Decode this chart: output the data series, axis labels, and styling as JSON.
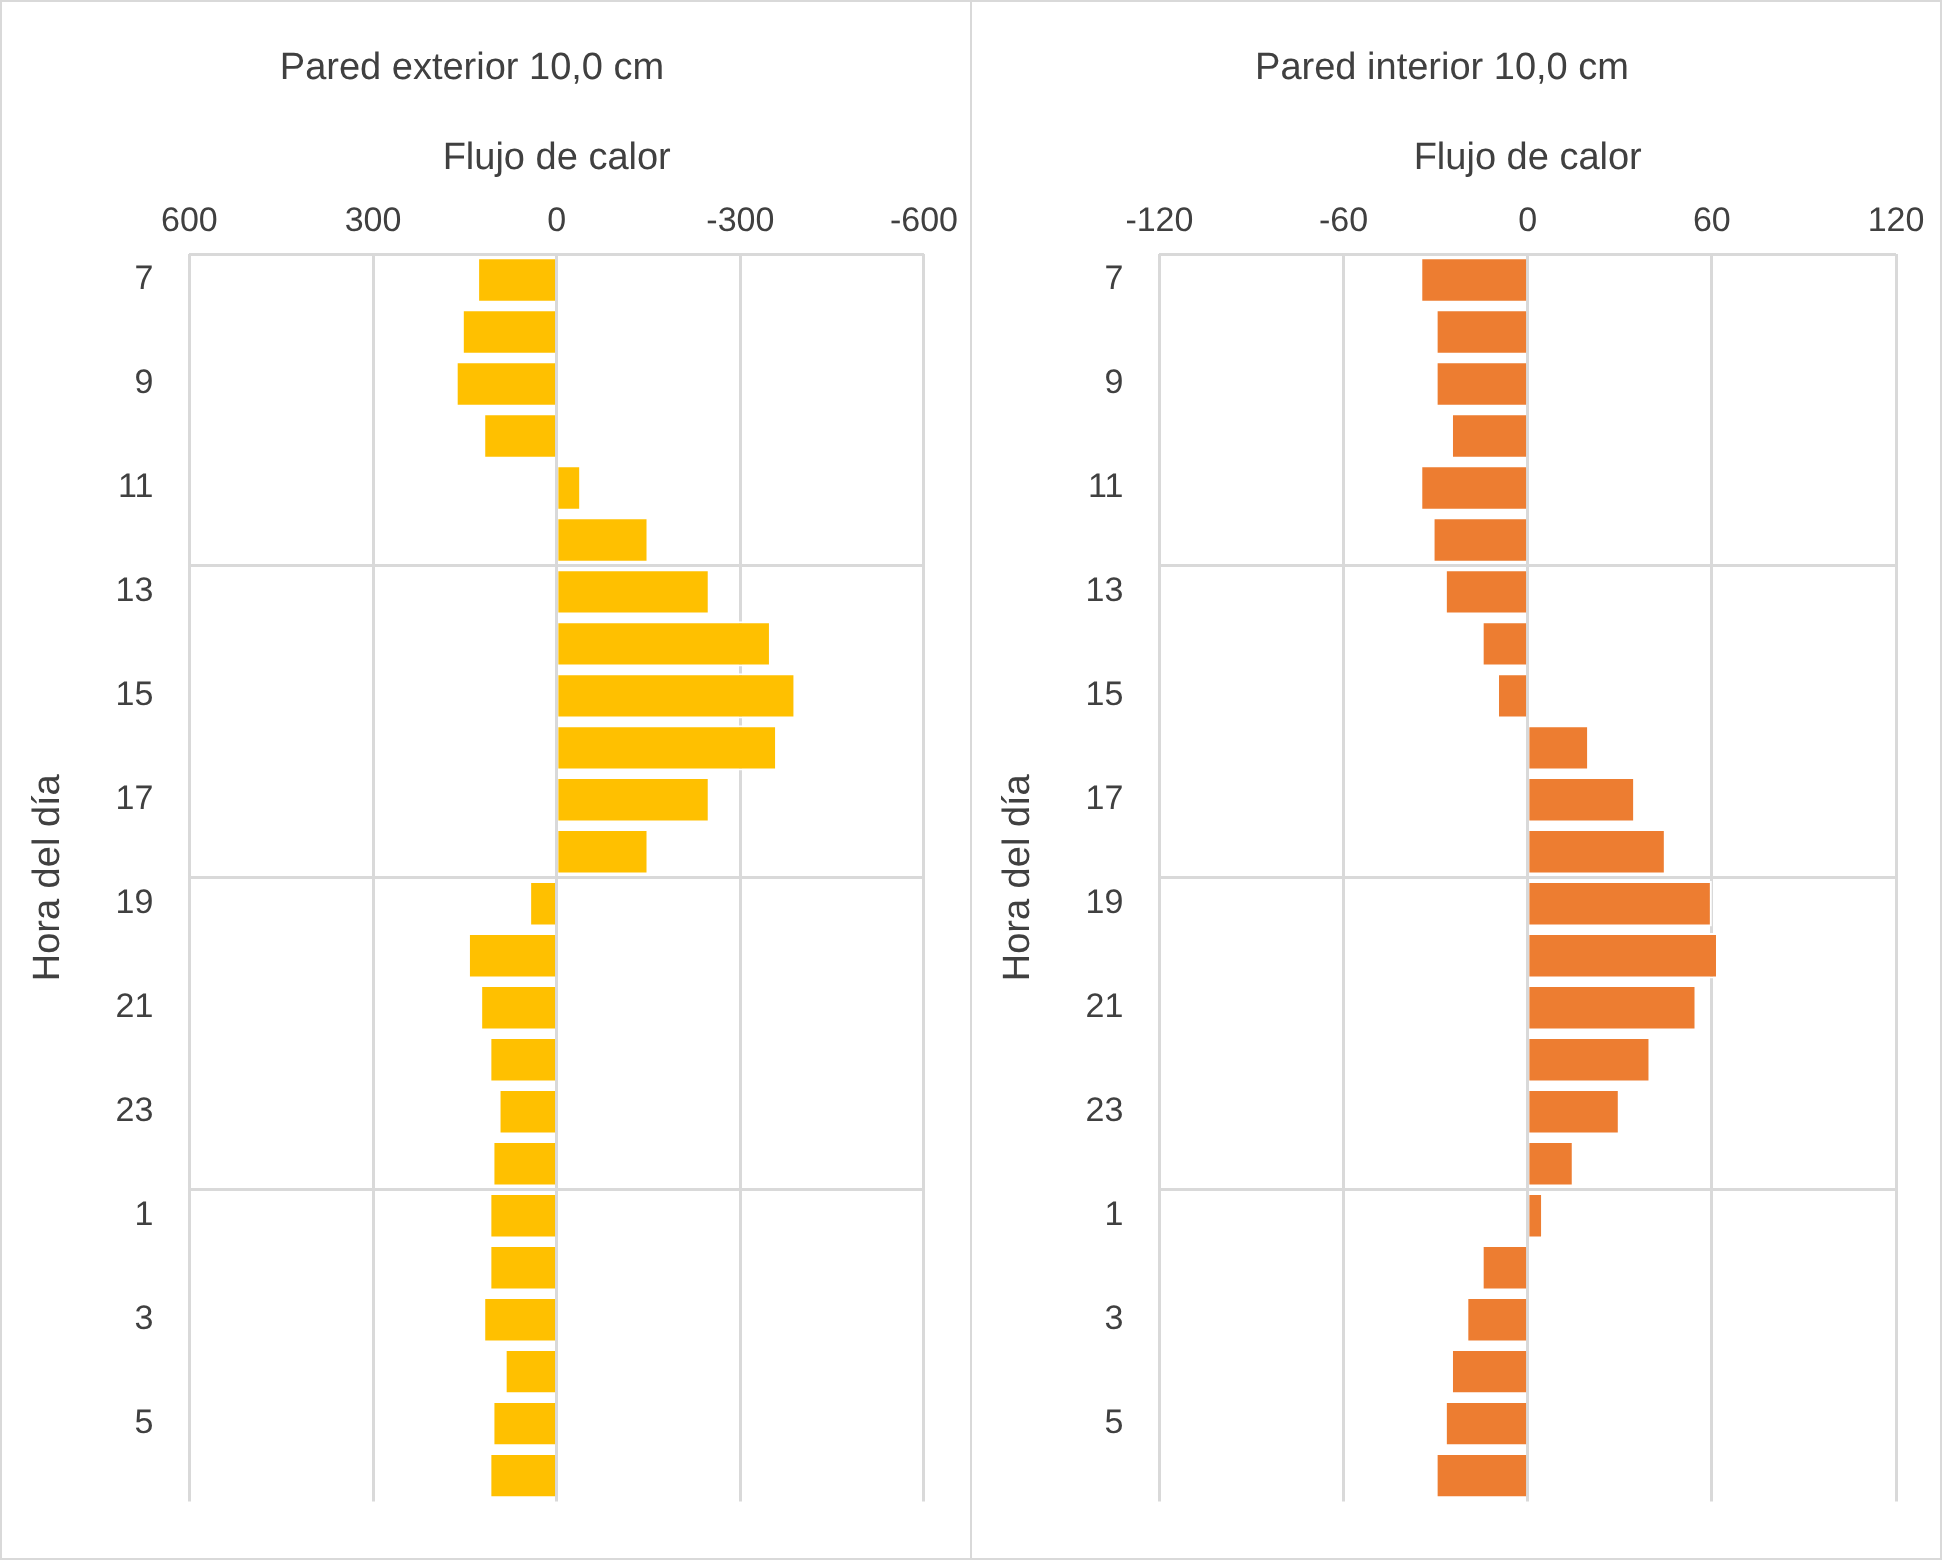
{
  "chart_data": [
    {
      "type": "bar",
      "orientation": "horizontal",
      "title": "Pared exterior 10,0 cm",
      "xlabel": "Flujo de calor",
      "ylabel": "Hora del día",
      "categories": [
        "7",
        null,
        "9",
        null,
        "11",
        null,
        "13",
        null,
        "15",
        null,
        "17",
        null,
        "19",
        null,
        "21",
        null,
        "23",
        null,
        "1",
        null,
        "3",
        null,
        "5",
        null
      ],
      "values": [
        130,
        155,
        165,
        120,
        -40,
        -150,
        -250,
        -350,
        -390,
        -360,
        -250,
        -150,
        45,
        145,
        125,
        110,
        95,
        105,
        110,
        110,
        120,
        85,
        105,
        110
      ],
      "color": "#ffc000",
      "xlim": [
        600,
        -600
      ],
      "xticks": [
        600,
        300,
        0,
        -300,
        -600
      ],
      "grid": true,
      "legend": false
    },
    {
      "type": "bar",
      "orientation": "horizontal",
      "title": "Pared interior 10,0 cm",
      "xlabel": "Flujo de calor",
      "ylabel": "Hora del día",
      "categories": [
        "7",
        null,
        "9",
        null,
        "11",
        null,
        "13",
        null,
        "15",
        null,
        "17",
        null,
        "19",
        null,
        "21",
        null,
        "23",
        null,
        "1",
        null,
        "3",
        null,
        "5",
        null
      ],
      "values": [
        -35,
        -30,
        -30,
        -25,
        -35,
        -31,
        -27,
        -15,
        -10,
        20,
        35,
        45,
        60,
        62,
        55,
        40,
        30,
        15,
        5,
        -15,
        -20,
        -25,
        -27,
        -30
      ],
      "color": "#ed7d31",
      "xlim": [
        -120,
        120
      ],
      "xticks": [
        -120,
        -60,
        0,
        60,
        120
      ],
      "grid": true,
      "legend": false
    }
  ]
}
